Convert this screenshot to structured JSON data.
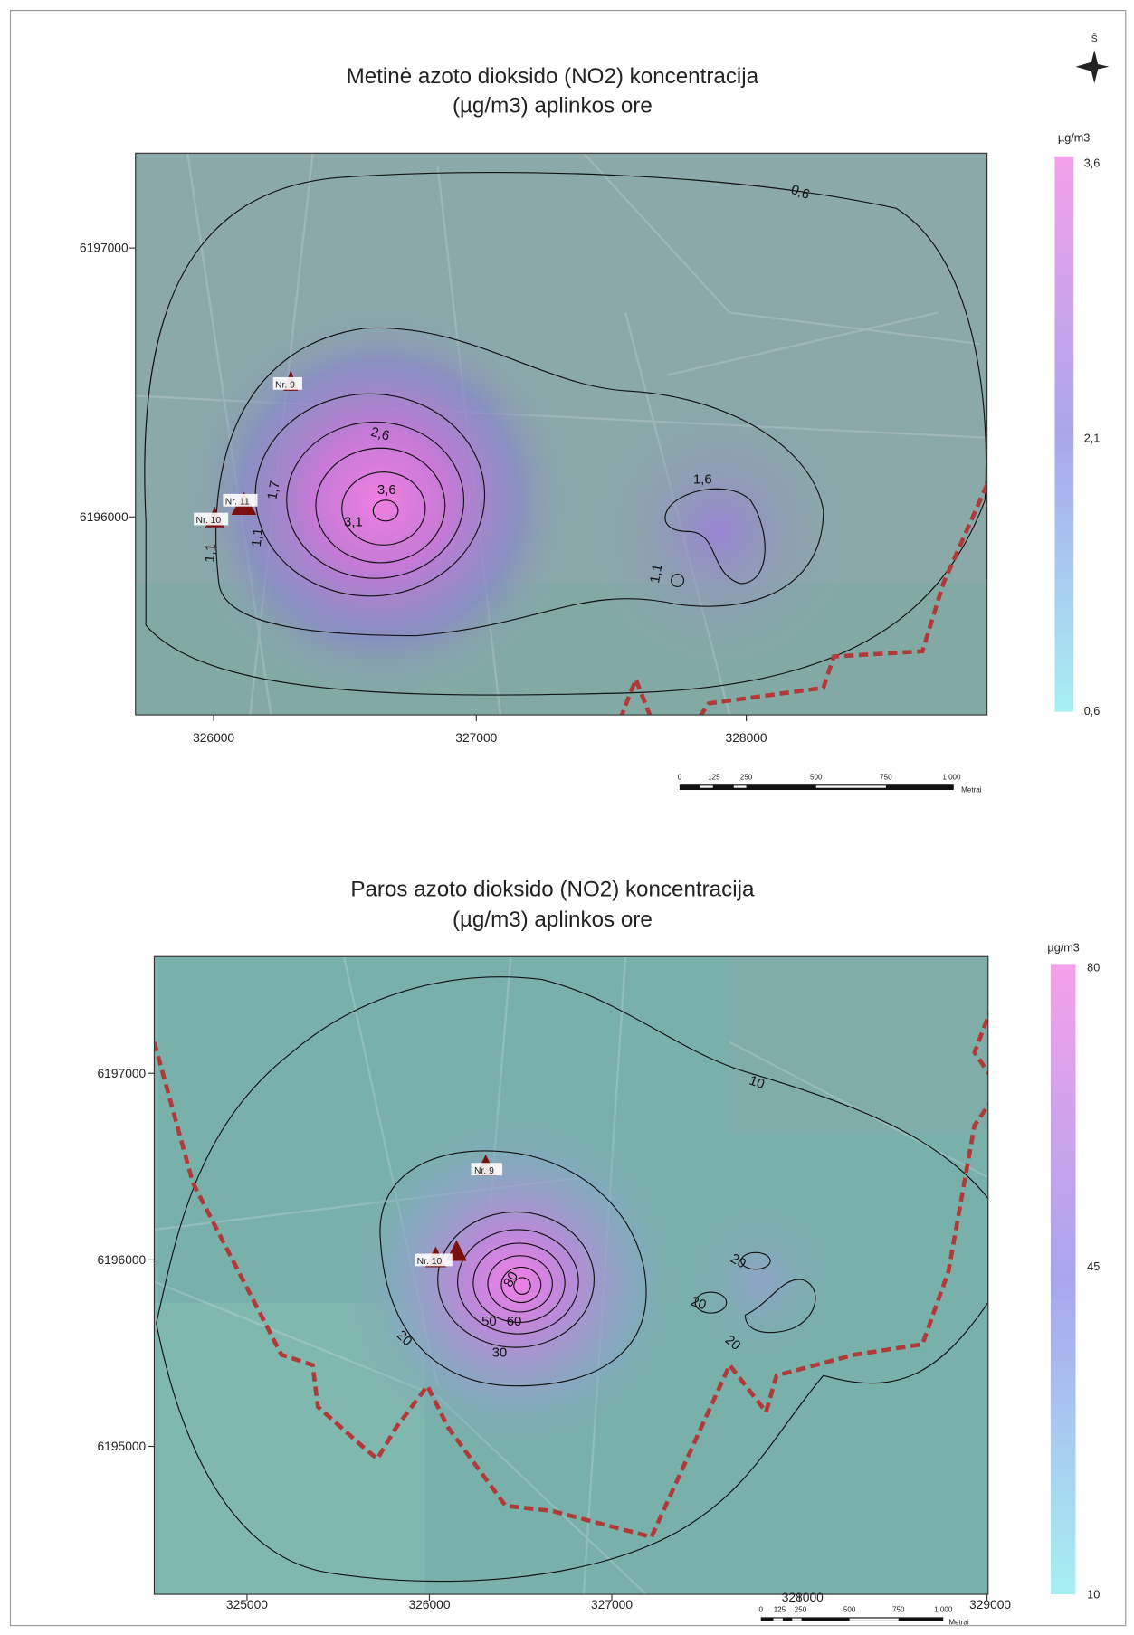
{
  "north": "Š",
  "maps": [
    {
      "title": [
        "Metinė azoto dioksido (NO2) koncentracija",
        "(µg/m3) aplinkos ore"
      ],
      "x_ticks": [
        "326000",
        "327000",
        "328000"
      ],
      "y_ticks": [
        "6197000",
        "6196000"
      ],
      "legend": {
        "unit": "µg/m3",
        "labels": [
          "3,6",
          "2,1",
          "0,6"
        ]
      },
      "contour_labels": [
        "0,6",
        "2,6",
        "3,6",
        "3,1",
        "1,7",
        "1,6",
        "1,1",
        "1,1",
        "1,1"
      ],
      "stations": [
        "Nr. 9",
        "Nr. 10",
        "Nr. 11"
      ],
      "scale": {
        "ticks": [
          "0",
          "125",
          "250",
          "500",
          "750",
          "1 000"
        ],
        "unit": "Metrai"
      }
    },
    {
      "title": [
        "Paros azoto dioksido (NO2) koncentracija",
        "(µg/m3) aplinkos ore"
      ],
      "x_ticks": [
        "325000",
        "326000",
        "327000",
        "328000",
        "329000"
      ],
      "y_ticks": [
        "6197000",
        "6196000",
        "6195000"
      ],
      "legend": {
        "unit": "µg/m3",
        "labels": [
          "80",
          "45",
          "10"
        ]
      },
      "contour_labels": [
        "10",
        "20",
        "20",
        "20",
        "20",
        "80",
        "50",
        "60",
        "30"
      ],
      "stations": [
        "Nr. 9",
        "Nr. 10"
      ],
      "scale": {
        "ticks": [
          "0",
          "125",
          "250",
          "500",
          "750",
          "1 000"
        ],
        "unit": "Metrai"
      }
    }
  ]
}
